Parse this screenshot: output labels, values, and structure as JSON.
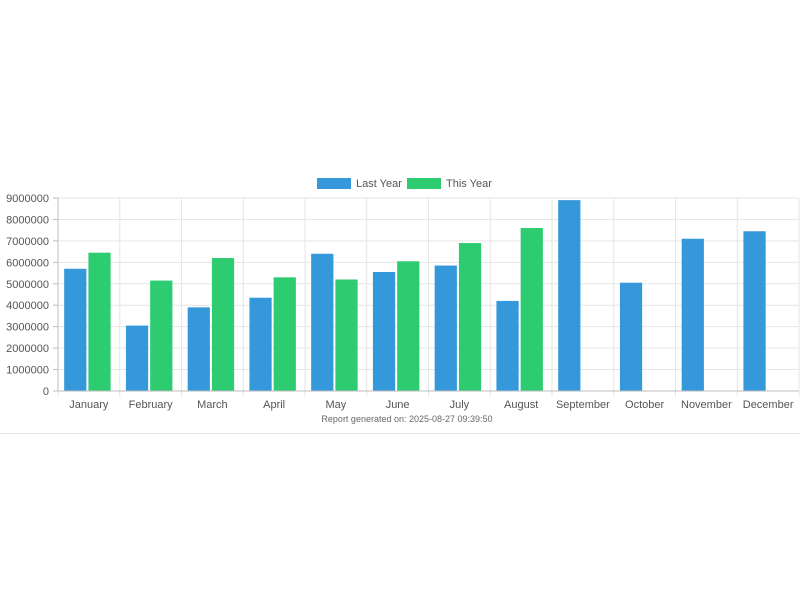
{
  "chart_data": {
    "type": "bar",
    "categories": [
      "January",
      "February",
      "March",
      "April",
      "May",
      "June",
      "July",
      "August",
      "September",
      "October",
      "November",
      "December"
    ],
    "series": [
      {
        "name": "Last Year",
        "color": "#3498db",
        "values": [
          5700000,
          3050000,
          3900000,
          4350000,
          6400000,
          5550000,
          5850000,
          4200000,
          8900000,
          5050000,
          7100000,
          7450000
        ]
      },
      {
        "name": "This Year",
        "color": "#2ecc71",
        "values": [
          6450000,
          5150000,
          6200000,
          5300000,
          5200000,
          6050000,
          6900000,
          7600000,
          null,
          null,
          null,
          null
        ]
      }
    ],
    "ylim": [
      0,
      9000000
    ],
    "yticks": [
      "0",
      "1000000",
      "2000000",
      "3000000",
      "4000000",
      "5000000",
      "6000000",
      "7000000",
      "8000000",
      "9000000"
    ],
    "grid": true,
    "legend_position": "top-center"
  },
  "footer": {
    "text": "Report generated on: 2025-08-27 09:39:50"
  },
  "colors": {
    "grid": "#e6e6e6",
    "axis": "#bdbdbd",
    "text": "#555555"
  }
}
